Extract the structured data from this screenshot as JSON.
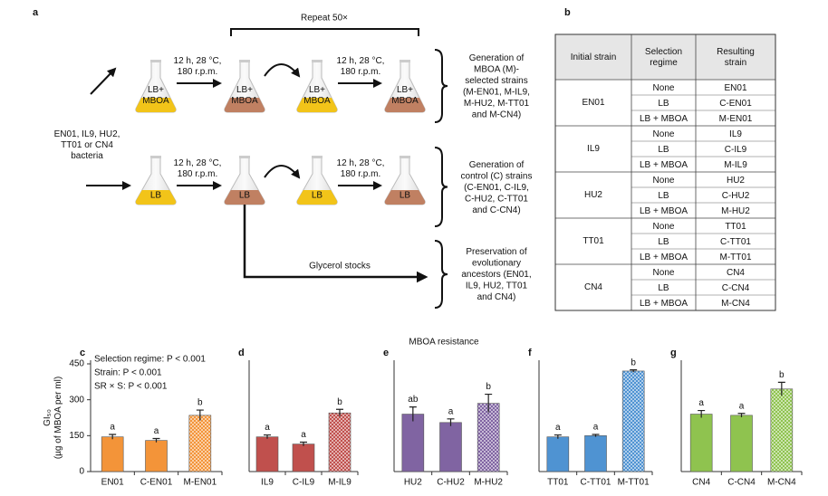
{
  "diagram": {
    "panel": "a",
    "repeat": "Repeat 50×",
    "source": [
      "EN01, IL9, HU2,",
      "TT01 or CN4",
      "bacteria"
    ],
    "conditions": [
      [
        "12 h, 28 °C,",
        "180 r.p.m."
      ],
      [
        "12 h, 28 °C,",
        "180 r.p.m."
      ],
      [
        "12 h, 28 °C,",
        "180 r.p.m."
      ],
      [
        "12 h, 28 °C,",
        "180 r.p.m."
      ]
    ],
    "flasks_top": [
      [
        "LB+",
        "MBOA"
      ],
      [
        "LB+",
        "MBOA"
      ],
      [
        "LB+",
        "MBOA"
      ],
      [
        "LB+",
        "MBOA"
      ]
    ],
    "flasks_bottom": [
      "LB",
      "LB",
      "LB",
      "LB"
    ],
    "glycerol": "Glycerol stocks",
    "outcomes": [
      [
        "Generation of",
        "MBOA (M)-",
        "selected strains",
        "(M-EN01, M-IL9,",
        "M-HU2, M-TT01",
        "and M-CN4)"
      ],
      [
        "Generation of",
        "control (C) strains",
        "(C-EN01, C-IL9,",
        "C-HU2, C-TT01",
        "and C-CN4)"
      ],
      [
        "Preservation of",
        "evolutionary",
        "ancestors (EN01,",
        "IL9, HU2, TT01",
        "and CN4)"
      ]
    ]
  },
  "table": {
    "panel": "b",
    "header": [
      [
        "Initial strain"
      ],
      [
        "Selection",
        "regime"
      ],
      [
        "Resulting",
        "strain"
      ]
    ],
    "groups": [
      {
        "strain": "EN01",
        "rows": [
          [
            "None",
            "EN01"
          ],
          [
            "LB",
            "C-EN01"
          ],
          [
            "LB + MBOA",
            "M-EN01"
          ]
        ]
      },
      {
        "strain": "IL9",
        "rows": [
          [
            "None",
            "IL9"
          ],
          [
            "LB",
            "C-IL9"
          ],
          [
            "LB + MBOA",
            "M-IL9"
          ]
        ]
      },
      {
        "strain": "HU2",
        "rows": [
          [
            "None",
            "HU2"
          ],
          [
            "LB",
            "C-HU2"
          ],
          [
            "LB + MBOA",
            "M-HU2"
          ]
        ]
      },
      {
        "strain": "TT01",
        "rows": [
          [
            "None",
            "TT01"
          ],
          [
            "LB",
            "C-TT01"
          ],
          [
            "LB + MBOA",
            "M-TT01"
          ]
        ]
      },
      {
        "strain": "CN4",
        "rows": [
          [
            "None",
            "CN4"
          ],
          [
            "LB",
            "C-CN4"
          ],
          [
            "LB + MBOA",
            "M-CN4"
          ]
        ]
      }
    ]
  },
  "figure_title": "MBOA resistance",
  "chart_data": [
    {
      "type": "bar",
      "panel": "c",
      "ylabel": [
        "GI₅₀",
        "(µg of MBOA per ml)"
      ],
      "stats": [
        "Selection regime: P < 0.001",
        "Strain: P < 0.001",
        "SR × S: P < 0.001"
      ],
      "categories": [
        "EN01",
        "C-EN01",
        "M-EN01"
      ],
      "values": [
        145,
        130,
        235
      ],
      "errors": [
        10,
        8,
        22
      ],
      "annotations": [
        "a",
        "a",
        "b"
      ],
      "color": "#f39439",
      "patterned": [
        false,
        false,
        true
      ],
      "ylim": [
        0,
        450
      ],
      "yticks": [
        0,
        150,
        300,
        450
      ]
    },
    {
      "type": "bar",
      "panel": "d",
      "categories": [
        "IL9",
        "C-IL9",
        "M-IL9"
      ],
      "values": [
        145,
        115,
        245
      ],
      "errors": [
        8,
        8,
        15
      ],
      "annotations": [
        "a",
        "a",
        "b"
      ],
      "color": "#c0504d",
      "patterned": [
        false,
        false,
        true
      ],
      "ylim": [
        0,
        450
      ]
    },
    {
      "type": "bar",
      "panel": "e",
      "categories": [
        "HU2",
        "C-HU2",
        "M-HU2"
      ],
      "values": [
        240,
        205,
        285
      ],
      "errors": [
        30,
        15,
        38
      ],
      "annotations": [
        "ab",
        "a",
        "b"
      ],
      "color": "#8064a2",
      "patterned": [
        false,
        false,
        true
      ],
      "ylim": [
        0,
        450
      ]
    },
    {
      "type": "bar",
      "panel": "f",
      "categories": [
        "TT01",
        "C-TT01",
        "M-TT01"
      ],
      "values": [
        145,
        150,
        420
      ],
      "errors": [
        8,
        5,
        5
      ],
      "annotations": [
        "a",
        "a",
        "b"
      ],
      "color": "#4f93d2",
      "patterned": [
        false,
        false,
        true
      ],
      "ylim": [
        0,
        450
      ]
    },
    {
      "type": "bar",
      "panel": "g",
      "categories": [
        "CN4",
        "C-CN4",
        "M-CN4"
      ],
      "values": [
        240,
        235,
        345
      ],
      "errors": [
        15,
        8,
        28
      ],
      "annotations": [
        "a",
        "a",
        "b"
      ],
      "color": "#8fc34f",
      "patterned": [
        false,
        false,
        true
      ],
      "ylim": [
        0,
        450
      ]
    }
  ]
}
